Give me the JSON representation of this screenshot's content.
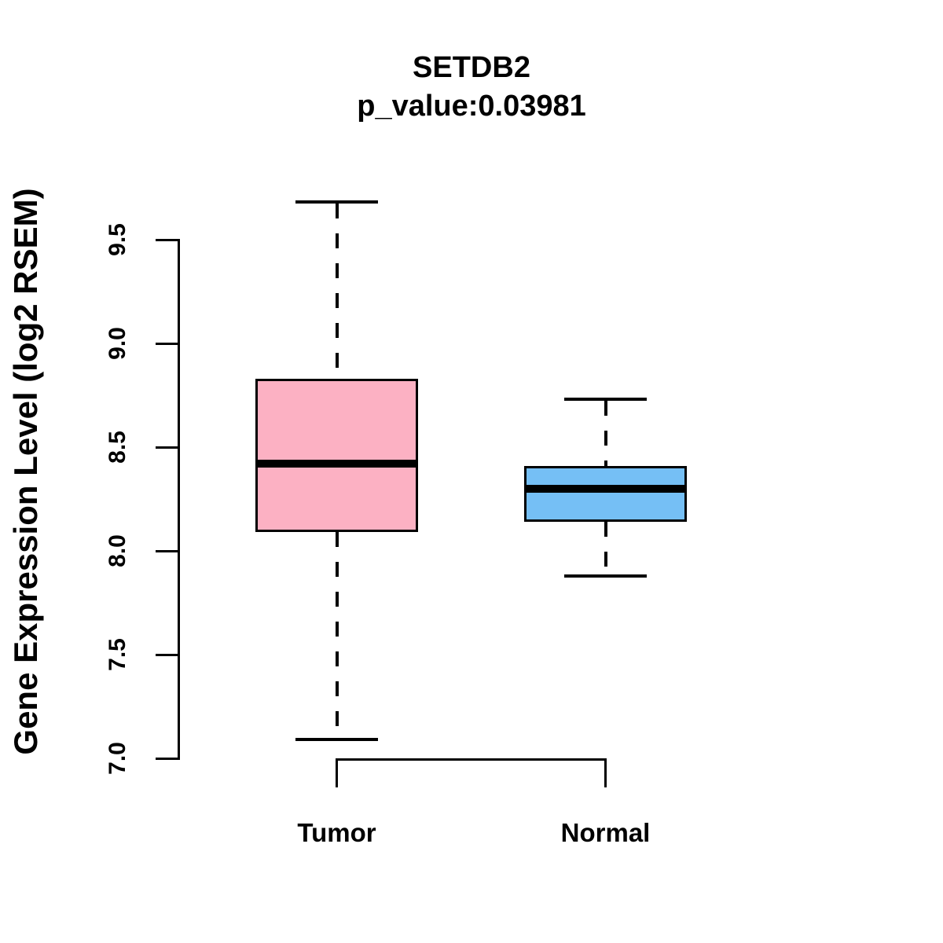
{
  "figure": {
    "background_color": "#ffffff",
    "stroke_color": "#000000"
  },
  "chart_data": {
    "type": "boxplot",
    "title": "SETDB2",
    "subtitle": "p_value:0.03981",
    "ylabel": "Gene Expression Level (log2 RSEM)",
    "xlabel": "",
    "y_tick_labels": [
      "7.0",
      "7.5",
      "8.0",
      "8.5",
      "9.0",
      "9.5"
    ],
    "y_ticks": [
      7.0,
      7.5,
      8.0,
      8.5,
      9.0,
      9.5
    ],
    "ylim": [
      6.9,
      9.75
    ],
    "grid": "off",
    "legend": "none",
    "categories": [
      "Tumor",
      "Normal"
    ],
    "series": [
      {
        "name": "Tumor",
        "fill_color": "#FCB1C3",
        "stats": {
          "min": 7.09,
          "q1": 8.09,
          "median": 8.42,
          "q3": 8.83,
          "max": 9.68
        }
      },
      {
        "name": "Normal",
        "fill_color": "#75BFF5",
        "stats": {
          "min": 7.88,
          "q1": 8.14,
          "median": 8.3,
          "q3": 8.41,
          "max": 8.73
        }
      }
    ]
  }
}
